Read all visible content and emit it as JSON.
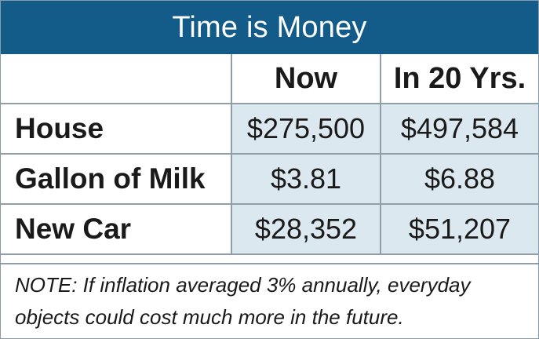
{
  "title": "Time is Money",
  "columns": [
    "",
    "Now",
    "In 20 Yrs."
  ],
  "rows": [
    {
      "label": "House",
      "now": "$275,500",
      "future": "$497,584"
    },
    {
      "label": "Gallon of Milk",
      "now": "$3.81",
      "future": "$6.88"
    },
    {
      "label": "New Car",
      "now": "$28,352",
      "future": "$51,207"
    }
  ],
  "note": {
    "prefix": "NOTE",
    "text": ": If inflation averaged 3% annually, everyday objects could cost much more in the future."
  },
  "colors": {
    "header_bg": "#135b88",
    "cell_bg": "#dce8ef",
    "border": "#8f9ea9"
  }
}
